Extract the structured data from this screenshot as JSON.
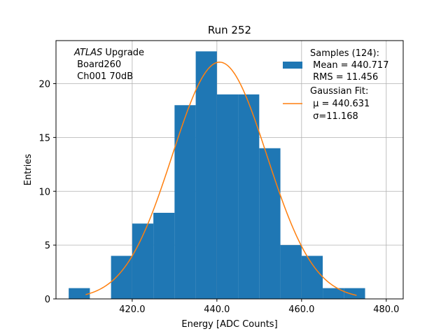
{
  "chart_data": {
    "type": "bar",
    "title": "Run 252",
    "xlabel": "Energy [ADC Counts]",
    "ylabel": "Entries",
    "xlim": [
      402,
      484
    ],
    "ylim": [
      0,
      24
    ],
    "xticks": [
      420,
      440,
      460,
      480
    ],
    "xtick_labels": [
      "420.0",
      "440.0",
      "460.0",
      "480.0"
    ],
    "yticks": [
      0,
      5,
      10,
      15,
      20
    ],
    "ytick_labels": [
      "0",
      "5",
      "10",
      "15",
      "20"
    ],
    "grid": true,
    "histogram": {
      "bins": [
        {
          "x0": 405,
          "x1": 410,
          "count": 1
        },
        {
          "x0": 410,
          "x1": 415,
          "count": 0
        },
        {
          "x0": 415,
          "x1": 420,
          "count": 4
        },
        {
          "x0": 420,
          "x1": 425,
          "count": 7
        },
        {
          "x0": 425,
          "x1": 430,
          "count": 8
        },
        {
          "x0": 430,
          "x1": 435,
          "count": 18
        },
        {
          "x0": 435,
          "x1": 440,
          "count": 23
        },
        {
          "x0": 440,
          "x1": 445,
          "count": 19
        },
        {
          "x0": 445,
          "x1": 450,
          "count": 19
        },
        {
          "x0": 450,
          "x1": 455,
          "count": 14
        },
        {
          "x0": 455,
          "x1": 460,
          "count": 5
        },
        {
          "x0": 460,
          "x1": 465,
          "count": 4
        },
        {
          "x0": 465,
          "x1": 470,
          "count": 1
        },
        {
          "x0": 470,
          "x1": 475,
          "count": 1
        }
      ],
      "color": "#1f77b4"
    },
    "gaussian_fit": {
      "mu": 440.631,
      "sigma": 11.168,
      "amplitude": 22.0,
      "x_range": [
        409,
        473
      ],
      "color": "#ff7f0e"
    },
    "legend": {
      "placement": "upper-right",
      "samples_lines": [
        "Samples (124):",
        " Mean = 440.717",
        " RMS = 11.456"
      ],
      "fit_lines": [
        "Gaussian Fit:",
        " μ = 440.631",
        " σ=11.168"
      ]
    },
    "annotation": {
      "placement": "upper-left",
      "italic_word": "ATLAS",
      "first_line_rest": " Upgrade",
      "lines": [
        " Board260",
        " Ch001 70dB"
      ]
    }
  }
}
